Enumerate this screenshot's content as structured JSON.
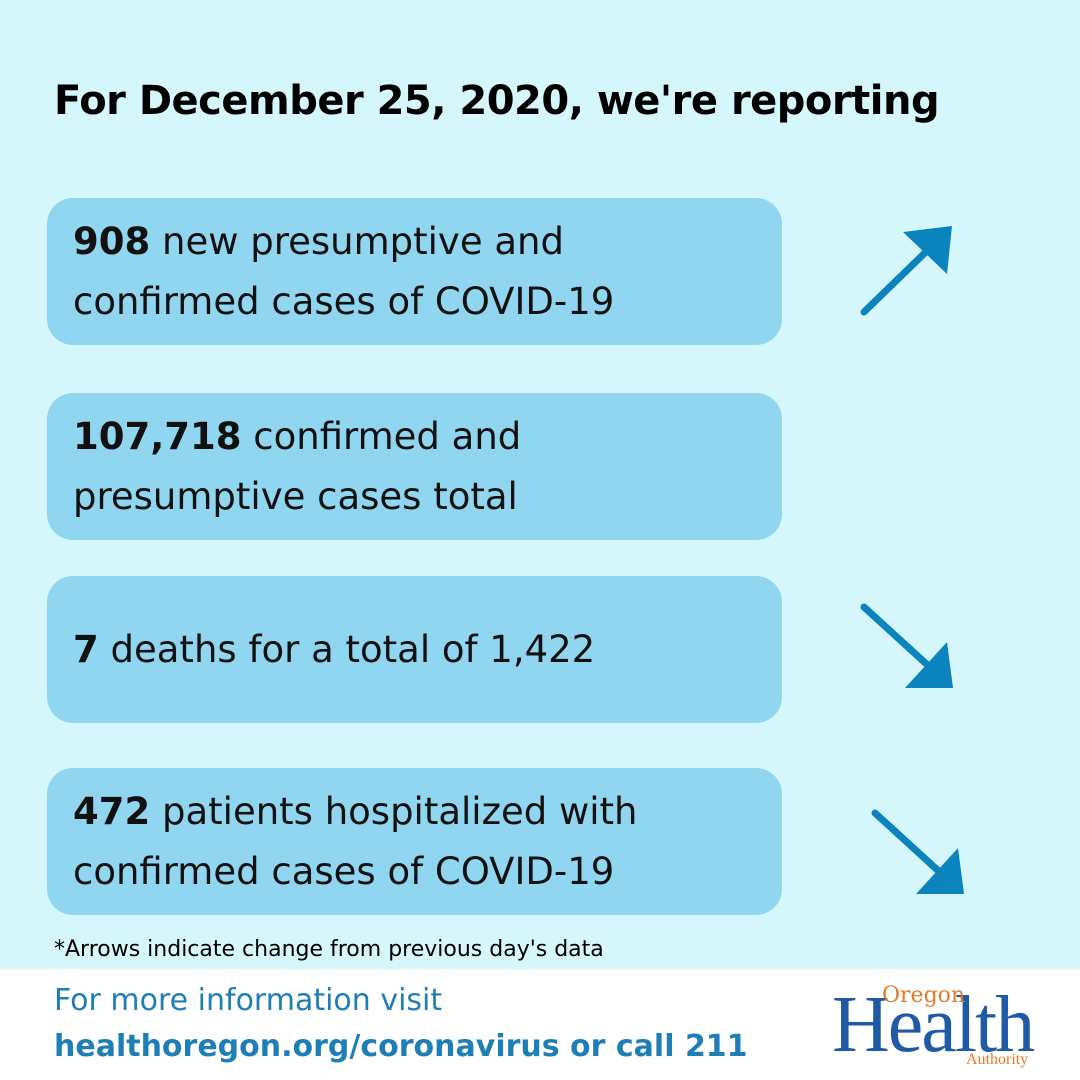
{
  "header": {
    "title": "For December 25, 2020, we're reporting"
  },
  "stats": [
    {
      "number": "908",
      "text_line1": " new presumptive and",
      "text_line2": "confirmed cases of COVID-19",
      "trend": "up"
    },
    {
      "number": "107,718",
      "text_line1": " confirmed and",
      "text_line2": "presumptive cases total",
      "trend": "none"
    },
    {
      "number": "7",
      "text_line1": " deaths for a total of 1,422",
      "text_line2": "",
      "trend": "down"
    },
    {
      "number": "472",
      "text_line1": " patients hospitalized with",
      "text_line2": "confirmed cases of COVID-19",
      "trend": "down"
    }
  ],
  "footnote": "*Arrows indicate change from previous day's data",
  "footer": {
    "line1": "For more information visit",
    "line2": "healthoregon.org/coronavirus or call 211",
    "logo": {
      "oregon": "Oregon",
      "health": "Health",
      "authority": "Authority"
    }
  },
  "colors": {
    "background": "#d5f6fb",
    "card": "#90d6f1",
    "arrow": "#0b83bd",
    "footer_text": "#1e7fb6",
    "logo_blue": "#1f5aa6",
    "logo_orange": "#e07b2a"
  },
  "icons": {
    "up": "arrow-up-right-icon",
    "down": "arrow-down-right-icon"
  }
}
